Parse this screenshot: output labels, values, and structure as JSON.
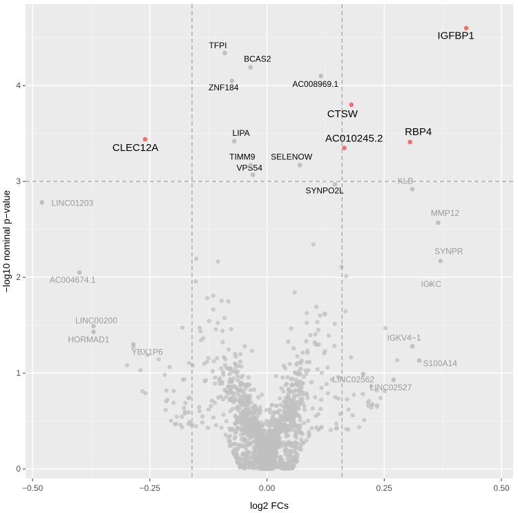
{
  "chart_data": {
    "type": "scatter",
    "title": "",
    "xlabel": "log2 FCs",
    "ylabel": "−log10 nominal p−value",
    "xlim": [
      -0.515,
      0.525
    ],
    "ylim": [
      -0.1,
      4.85
    ],
    "xticks": [
      -0.5,
      -0.25,
      0.0,
      0.25,
      0.5
    ],
    "xtick_labels": [
      "−0.50",
      "−0.25",
      "0.00",
      "0.25",
      "0.50"
    ],
    "yticks": [
      0,
      1,
      2,
      3,
      4
    ],
    "ytick_labels": [
      "0",
      "1",
      "2",
      "3",
      "4"
    ],
    "grid": true,
    "threshold_lines": {
      "vertical": [
        -0.16,
        0.16
      ],
      "horizontal": [
        3.0
      ]
    },
    "colors": {
      "panel": "#ebebeb",
      "grid_major": "#ffffff",
      "grid_minor": "#f4f4f4",
      "point": "#c0c0c0",
      "highlight": "#f07070",
      "threshold": "#9e9e9e",
      "label_strong": "#000000",
      "label_weak": "#9b9b9b"
    },
    "background_points_note": "dense volcano cloud of non-significant genes",
    "labeled_points": [
      {
        "label": "IGFBP1",
        "x": 0.425,
        "y": 4.6,
        "group": "highlight"
      },
      {
        "label": "CTSW",
        "x": 0.18,
        "y": 3.8,
        "group": "highlight"
      },
      {
        "label": "RBP4",
        "x": 0.305,
        "y": 3.41,
        "group": "highlight"
      },
      {
        "label": "AC010245.2",
        "x": 0.165,
        "y": 3.35,
        "group": "highlight"
      },
      {
        "label": "CLEC12A",
        "x": -0.26,
        "y": 3.44,
        "group": "highlight"
      },
      {
        "label": "TFPI",
        "x": -0.09,
        "y": 4.34,
        "group": "significant"
      },
      {
        "label": "BCAS2",
        "x": -0.035,
        "y": 4.19,
        "group": "significant"
      },
      {
        "label": "ZNF184",
        "x": -0.075,
        "y": 4.05,
        "group": "significant"
      },
      {
        "label": "AC008969.1",
        "x": 0.115,
        "y": 4.1,
        "group": "significant"
      },
      {
        "label": "LIPA",
        "x": -0.07,
        "y": 3.42,
        "group": "significant"
      },
      {
        "label": "TIMM9",
        "x": -0.035,
        "y": 3.17,
        "group": "significant"
      },
      {
        "label": "SELENOW",
        "x": 0.07,
        "y": 3.17,
        "group": "significant"
      },
      {
        "label": "VPS54",
        "x": -0.03,
        "y": 3.07,
        "group": "significant"
      },
      {
        "label": "SYNPO2L",
        "x": 0.145,
        "y": 2.97,
        "group": "significant"
      },
      {
        "label": "KLB",
        "x": 0.31,
        "y": 2.92,
        "group": "other"
      },
      {
        "label": "LINC01203",
        "x": -0.48,
        "y": 2.78,
        "group": "other"
      },
      {
        "label": "MMP12",
        "x": 0.365,
        "y": 2.57,
        "group": "other"
      },
      {
        "label": "SYNPR",
        "x": 0.37,
        "y": 2.17,
        "group": "other"
      },
      {
        "label": "IGKC",
        "x": 0.35,
        "y": 1.93,
        "group": "other"
      },
      {
        "label": "AC004674.1",
        "x": -0.4,
        "y": 2.05,
        "group": "other"
      },
      {
        "label": "LINC00200",
        "x": -0.37,
        "y": 1.49,
        "group": "other"
      },
      {
        "label": "HORMAD1",
        "x": -0.37,
        "y": 1.43,
        "group": "other"
      },
      {
        "label": "YBX1P6",
        "x": -0.285,
        "y": 1.3,
        "group": "other"
      },
      {
        "label": "IGKV4−1",
        "x": 0.31,
        "y": 1.28,
        "group": "other"
      },
      {
        "label": "S100A14",
        "x": 0.325,
        "y": 1.13,
        "group": "other"
      },
      {
        "label": "LINC02562",
        "x": 0.205,
        "y": 0.99,
        "group": "other"
      },
      {
        "label": "LINC02527",
        "x": 0.27,
        "y": 0.93,
        "group": "other"
      }
    ]
  }
}
